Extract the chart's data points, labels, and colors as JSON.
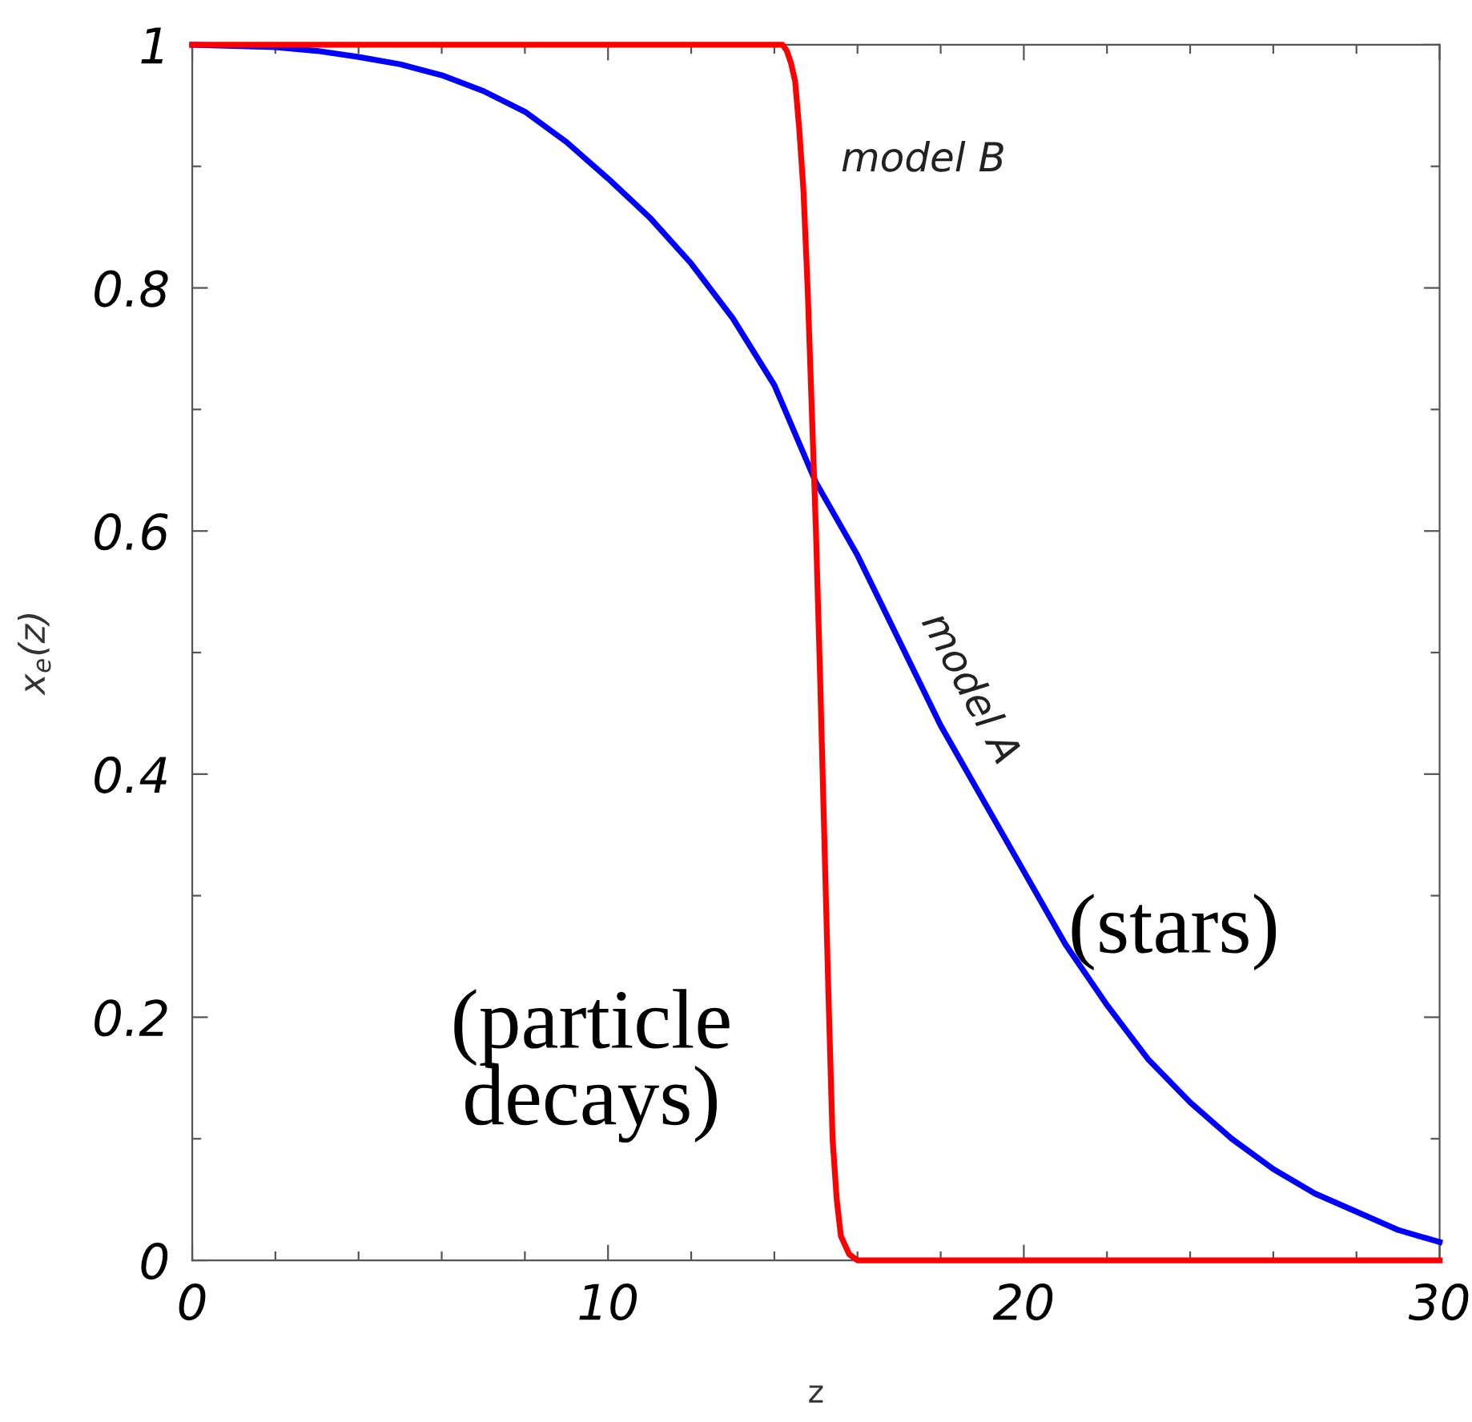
{
  "chart_data": {
    "type": "line",
    "xlabel": "z",
    "ylabel": "x$_{e}$(z)",
    "xlim": [
      0,
      30
    ],
    "ylim": [
      0,
      1
    ],
    "xticks": [
      0,
      {
        "value": 2,
        "label": null
      },
      {
        "value": 4,
        "label": null
      },
      {
        "value": 6,
        "label": null
      },
      {
        "value": 8,
        "label": null
      },
      10,
      {
        "value": 12,
        "label": null
      },
      {
        "value": 14,
        "label": null
      },
      {
        "value": 16,
        "label": null
      },
      {
        "value": 18,
        "label": null
      },
      20,
      {
        "value": 22,
        "label": null
      },
      {
        "value": 24,
        "label": null
      },
      {
        "value": 26,
        "label": null
      },
      {
        "value": 28,
        "label": null
      },
      30
    ],
    "yticks": [
      0,
      {
        "value": 0.1,
        "label": null
      },
      0.2,
      {
        "value": 0.3,
        "label": null
      },
      0.4,
      {
        "value": 0.5,
        "label": null
      },
      0.6,
      {
        "value": 0.7,
        "label": null
      },
      0.8,
      {
        "value": 0.9,
        "label": null
      },
      1
    ],
    "grid": false,
    "marker": "none",
    "line_style": "solid",
    "legend": false,
    "series": [
      {
        "name": "model A",
        "color": "#0000ff",
        "x": [
          0,
          1,
          2,
          3,
          4,
          5,
          6,
          7,
          8,
          9,
          10,
          11,
          12,
          13,
          14,
          15,
          16,
          17,
          18,
          19,
          20,
          21,
          22,
          23,
          24,
          25,
          26,
          27,
          28,
          29,
          30
        ],
        "values": [
          1.0,
          0.999,
          0.998,
          0.995,
          0.99,
          0.984,
          0.975,
          0.962,
          0.945,
          0.92,
          0.89,
          0.858,
          0.82,
          0.775,
          0.72,
          0.64,
          0.58,
          0.51,
          0.44,
          0.38,
          0.32,
          0.26,
          0.21,
          0.165,
          0.13,
          0.1,
          0.075,
          0.055,
          0.04,
          0.025,
          0.015
        ]
      },
      {
        "name": "model B",
        "color": "#ff0000",
        "x": [
          0,
          14.0,
          14.2,
          14.3,
          14.4,
          14.5,
          14.6,
          14.7,
          14.8,
          14.9,
          15.0,
          15.1,
          15.2,
          15.3,
          15.4,
          15.5,
          15.6,
          15.8,
          16,
          30
        ],
        "values": [
          1.0,
          1.0,
          1.0,
          0.995,
          0.985,
          0.97,
          0.93,
          0.88,
          0.8,
          0.7,
          0.6,
          0.48,
          0.35,
          0.22,
          0.1,
          0.05,
          0.02,
          0.005,
          0.0,
          0.0
        ]
      }
    ],
    "annotations": [
      "(stars)",
      "(particle decays)"
    ]
  }
}
